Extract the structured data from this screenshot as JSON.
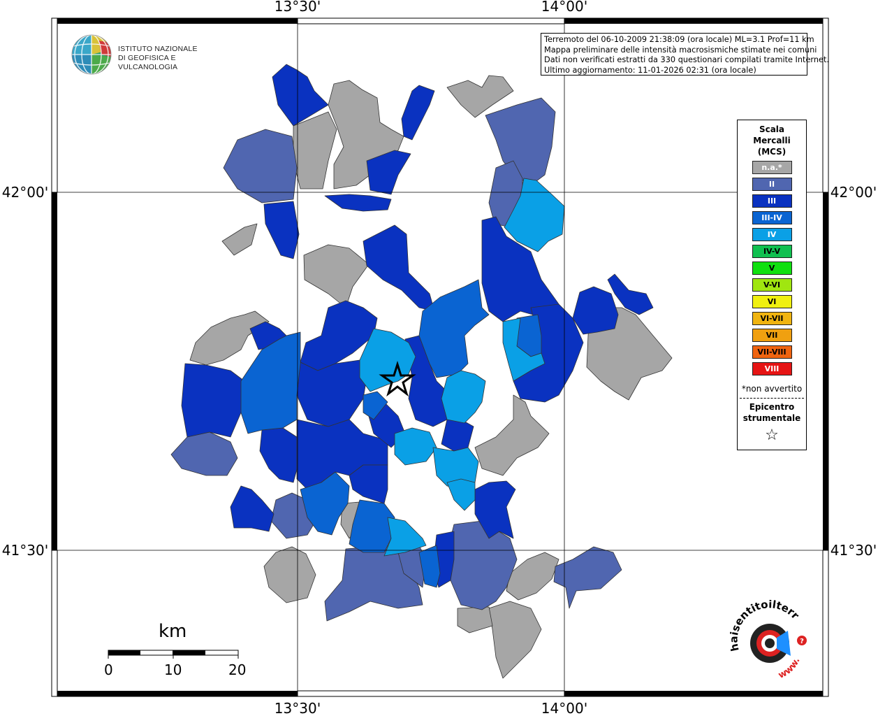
{
  "map": {
    "lon_labels_top": [
      "13°30'",
      "14°00'"
    ],
    "lon_labels_bottom": [
      "13°30'",
      "14°00'"
    ],
    "lat_labels_left": [
      "42°00'",
      "41°30'"
    ],
    "lat_labels_right": [
      "42°00'",
      "41°30'"
    ]
  },
  "info": {
    "line1": "Terremoto del 06-10-2009 21:38:09 (ora locale) ML=3.1 Prof=11 km",
    "line2": "Mappa preliminare delle intensità macrosismiche stimate nei comuni",
    "line3": "Dati non verificati estratti da 330 questionari compilati tramite Internet.",
    "line4": "Ultimo aggiornamento: 11-01-2026 02:31 (ora locale)"
  },
  "logo": {
    "line1": "ISTITUTO NAZIONALE",
    "line2": "DI GEOFISICA E VULCANOLOGIA"
  },
  "legend": {
    "title1": "Scala",
    "title2": "Mercalli",
    "title3": "(MCS)",
    "classes": [
      {
        "label": "n.a.*",
        "color": "#a6a6a6",
        "text": "#ffffff"
      },
      {
        "label": "II",
        "color": "#5066b0",
        "text": "#ffffff"
      },
      {
        "label": "III",
        "color": "#0a32c0",
        "text": "#ffffff"
      },
      {
        "label": "III-IV",
        "color": "#0a64d2",
        "text": "#ffffff"
      },
      {
        "label": "IV",
        "color": "#0aa0e6",
        "text": "#ffffff"
      },
      {
        "label": "IV-V",
        "color": "#10c050",
        "text": "#000000"
      },
      {
        "label": "V",
        "color": "#10e010",
        "text": "#000000"
      },
      {
        "label": "V-VI",
        "color": "#a0e610",
        "text": "#000000"
      },
      {
        "label": "VI",
        "color": "#f0f010",
        "text": "#000000"
      },
      {
        "label": "VI-VII",
        "color": "#f0b410",
        "text": "#000000"
      },
      {
        "label": "VII",
        "color": "#f0a010",
        "text": "#000000"
      },
      {
        "label": "VII-VIII",
        "color": "#f06410",
        "text": "#000000"
      },
      {
        "label": "VIII",
        "color": "#e61414",
        "text": "#ffffff"
      }
    ],
    "note": "*non avvertito",
    "epicenter1": "Epicentro",
    "epicenter2": "strumentale",
    "star": "☆"
  },
  "scalebar": {
    "unit": "km",
    "ticks": [
      "0",
      "10",
      "20"
    ]
  },
  "hsit": {
    "text": "haisentitoilterremoto.it",
    "prefix": "www.",
    "question": "?"
  },
  "colors": {
    "na": "#a6a6a6",
    "II": "#5066b0",
    "III": "#0a32c0",
    "III_IV": "#0a64d2",
    "IV": "#0aa0e6"
  }
}
